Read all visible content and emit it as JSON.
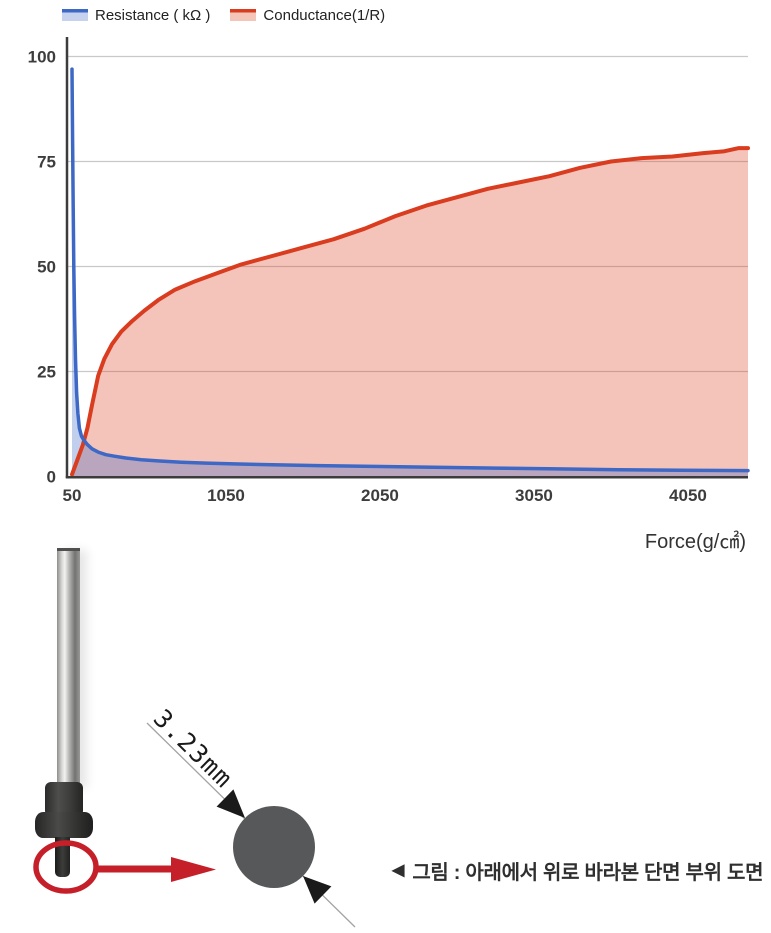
{
  "chart_data": {
    "type": "area",
    "title": "",
    "xlabel": "Force(g/㎠)",
    "ylabel": "",
    "xlim": [
      50,
      4440
    ],
    "ylim": [
      0,
      104
    ],
    "x_ticks": [
      50,
      1050,
      2050,
      3050,
      4050
    ],
    "y_ticks": [
      0,
      25,
      50,
      75,
      100
    ],
    "grid": true,
    "legend_position": "top",
    "series": [
      {
        "name": "Resistance ( kΩ )",
        "color": "#3d68c5",
        "fill": "rgba(61,104,197,0.32)",
        "legend_fill": "#c7d3ee",
        "points": [
          [
            50,
            97
          ],
          [
            54,
            80
          ],
          [
            58,
            64
          ],
          [
            62,
            50
          ],
          [
            67,
            38
          ],
          [
            73,
            28
          ],
          [
            80,
            20
          ],
          [
            88,
            15
          ],
          [
            98,
            11.5
          ],
          [
            112,
            9.6
          ],
          [
            128,
            8.6
          ],
          [
            150,
            7.6
          ],
          [
            180,
            6.6
          ],
          [
            220,
            5.8
          ],
          [
            270,
            5.2
          ],
          [
            330,
            4.8
          ],
          [
            400,
            4.4
          ],
          [
            500,
            4.0
          ],
          [
            620,
            3.7
          ],
          [
            760,
            3.4
          ],
          [
            920,
            3.2
          ],
          [
            1100,
            3.0
          ],
          [
            1350,
            2.8
          ],
          [
            1650,
            2.6
          ],
          [
            2000,
            2.4
          ],
          [
            2400,
            2.2
          ],
          [
            2800,
            2.0
          ],
          [
            3200,
            1.8
          ],
          [
            3600,
            1.6
          ],
          [
            4000,
            1.5
          ],
          [
            4440,
            1.4
          ]
        ]
      },
      {
        "name": "Conductance(1/R)",
        "color": "#d93c1e",
        "fill": "rgba(217,60,30,0.30)",
        "legend_fill": "#f4c6ba",
        "points": [
          [
            50,
            0.5
          ],
          [
            90,
            4.5
          ],
          [
            120,
            7.5
          ],
          [
            150,
            11.5
          ],
          [
            180,
            17
          ],
          [
            220,
            24
          ],
          [
            260,
            28
          ],
          [
            310,
            31.5
          ],
          [
            370,
            34.5
          ],
          [
            440,
            37
          ],
          [
            520,
            39.5
          ],
          [
            610,
            42
          ],
          [
            720,
            44.5
          ],
          [
            850,
            46.5
          ],
          [
            1000,
            48.5
          ],
          [
            1150,
            50.5
          ],
          [
            1350,
            52.5
          ],
          [
            1550,
            54.5
          ],
          [
            1750,
            56.5
          ],
          [
            1950,
            59
          ],
          [
            2150,
            62
          ],
          [
            2350,
            64.5
          ],
          [
            2550,
            66.5
          ],
          [
            2750,
            68.5
          ],
          [
            2950,
            70
          ],
          [
            3150,
            71.5
          ],
          [
            3350,
            73.5
          ],
          [
            3550,
            75
          ],
          [
            3750,
            75.8
          ],
          [
            3950,
            76.2
          ],
          [
            4150,
            77
          ],
          [
            4280,
            77.4
          ],
          [
            4380,
            78.2
          ],
          [
            4440,
            78.2
          ]
        ]
      }
    ]
  },
  "diagram": {
    "dimension_label": "3.23mm",
    "caption_marker": "◀",
    "caption": "그림 : 아래에서 위로 바라본 단면 부위 도면",
    "circle_color": "#57585a",
    "annotation_color": "#c5202a",
    "dimension_line_color": "#a3a3a3",
    "arrowhead_color": "#1a1a1a"
  }
}
